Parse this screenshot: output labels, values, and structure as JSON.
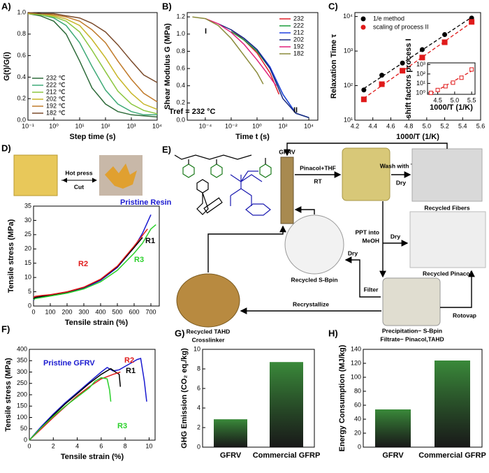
{
  "chart_data": [
    {
      "panel": "A)",
      "type": "line",
      "xlabel": "Step time (s)",
      "ylabel": "G(t)/G(i)",
      "xscale": "log",
      "xlim": [
        0.1,
        10000
      ],
      "xticks": [
        {
          "value": 0.1,
          "label": "10⁻¹"
        },
        {
          "value": 1,
          "label": "10⁰"
        },
        {
          "value": 10,
          "label": "10¹"
        },
        {
          "value": 100,
          "label": "10²"
        },
        {
          "value": 1000,
          "label": "10³"
        },
        {
          "value": 10000,
          "label": "10⁴"
        }
      ],
      "ylim": [
        0,
        1
      ],
      "yticks": [
        {
          "value": 0,
          "label": "0.0"
        },
        0.2,
        0.4,
        0.6,
        0.8,
        {
          "value": 1,
          "label": "1.0"
        }
      ],
      "legend": "lower left",
      "x": [
        0.1,
        0.3,
        1,
        3,
        10,
        30,
        100,
        300,
        1000,
        3000,
        10000
      ],
      "series": [
        {
          "name": "232 ℃",
          "color": "#2e6b3a",
          "values": [
            0.99,
            0.97,
            0.92,
            0.8,
            0.55,
            0.3,
            0.15,
            0.08,
            0.05,
            0.04,
            0.03
          ]
        },
        {
          "name": "222 ℃",
          "color": "#3faa78",
          "values": [
            0.99,
            0.98,
            0.95,
            0.88,
            0.72,
            0.5,
            0.28,
            0.15,
            0.08,
            0.05,
            0.05
          ]
        },
        {
          "name": "212 ℃",
          "color": "#8cc63f",
          "values": [
            0.99,
            0.98,
            0.96,
            0.92,
            0.82,
            0.65,
            0.45,
            0.27,
            0.15,
            0.09,
            0.06
          ]
        },
        {
          "name": "202 ℃",
          "color": "#c8b628",
          "values": [
            0.99,
            0.99,
            0.97,
            0.94,
            0.88,
            0.75,
            0.58,
            0.4,
            0.25,
            0.15,
            0.1
          ]
        },
        {
          "name": "192 ℃",
          "color": "#c07a2a",
          "values": [
            1,
            0.99,
            0.98,
            0.96,
            0.92,
            0.84,
            0.72,
            0.55,
            0.38,
            0.25,
            0.17
          ]
        },
        {
          "name": "182 ℃",
          "color": "#7a4a2a",
          "values": [
            1,
            0.99,
            0.99,
            0.97,
            0.95,
            0.9,
            0.82,
            0.7,
            0.55,
            0.42,
            0.35
          ]
        }
      ]
    },
    {
      "panel": "B)",
      "type": "line",
      "xlabel": "Time t (s)",
      "ylabel": "Shear Modulus G (MPa)",
      "xscale": "log",
      "xlim": [
        4e-06,
        50000
      ],
      "xticks": [
        {
          "value": 0.0001,
          "label": "10⁻⁴"
        },
        {
          "value": 0.01,
          "label": "10⁻²"
        },
        {
          "value": 1,
          "label": "10⁰"
        },
        {
          "value": 100,
          "label": "10²"
        },
        {
          "value": 10000,
          "label": "10⁴"
        }
      ],
      "ylim": [
        0,
        1.25
      ],
      "yticks": [
        {
          "value": 0,
          "label": "0.0"
        },
        0.2,
        0.4,
        0.6,
        0.8,
        {
          "value": 1,
          "label": "1.0"
        },
        1.2
      ],
      "legend": "upper right",
      "annotations": [
        "I",
        "II",
        "Tref = 232 °C"
      ],
      "series": [
        {
          "name": "232",
          "color": "#e0202a",
          "x": [
            0.01,
            0.1,
            1,
            10,
            50
          ],
          "values": [
            1.05,
            0.93,
            0.78,
            0.55,
            0.3
          ]
        },
        {
          "name": "222",
          "color": "#1a9a3a",
          "x": [
            0.01,
            0.1,
            1,
            10,
            100,
            1000,
            10000
          ],
          "values": [
            1.03,
            0.93,
            0.8,
            0.6,
            0.3,
            0.08,
            0.03
          ]
        },
        {
          "name": "212",
          "color": "#2040e0",
          "x": [
            0.01,
            0.1,
            1,
            10,
            100,
            1000,
            10000
          ],
          "values": [
            1.05,
            0.95,
            0.82,
            0.62,
            0.3,
            0.08,
            0.03
          ]
        },
        {
          "name": "202",
          "color": "#1a2a80",
          "x": [
            0.001,
            0.01,
            0.1,
            1,
            10,
            100,
            1000,
            10000
          ],
          "values": [
            1.12,
            1.05,
            0.95,
            0.82,
            0.6,
            0.25,
            0.08,
            0.03
          ]
        },
        {
          "name": "192",
          "color": "#e0207a",
          "x": [
            0.0001,
            0.001,
            0.01,
            0.1,
            1,
            10,
            30
          ],
          "values": [
            1.18,
            1.12,
            1.02,
            0.88,
            0.7,
            0.5,
            0.4
          ]
        },
        {
          "name": "182",
          "color": "#8a8a3a",
          "x": [
            1e-05,
            0.0001,
            0.001,
            0.01,
            0.1,
            1,
            3
          ],
          "values": [
            1.2,
            1.18,
            1.1,
            0.95,
            0.75,
            0.55,
            0.42
          ]
        }
      ]
    },
    {
      "panel": "C)",
      "type": "scatter",
      "xlabel": "1000/T (1/K)",
      "ylabel": "Relaxation Time τ",
      "yscale": "log",
      "xlim": [
        4.2,
        5.6
      ],
      "xticks": [
        4.2,
        4.4,
        4.6,
        4.8,
        {
          "value": 5,
          "label": "5.0"
        },
        5.2,
        5.4,
        5.6
      ],
      "ylim": [
        10,
        13000
      ],
      "yticks": [
        {
          "value": 10,
          "label": "10¹"
        },
        {
          "value": 100,
          "label": "10²"
        },
        {
          "value": 1000,
          "label": "10³"
        },
        {
          "value": 10000,
          "label": "10⁴"
        }
      ],
      "legend": "upper left",
      "x": [
        4.3,
        4.5,
        4.73,
        4.95,
        5.2,
        5.5
      ],
      "series": [
        {
          "name": "1/e method",
          "color": "#000000",
          "marker": "circle",
          "fit": true,
          "values": [
            75,
            200,
            450,
            1100,
            3000,
            9000
          ]
        },
        {
          "name": "scaling of process II",
          "color": "#e01a1a",
          "marker": "square",
          "fit": true,
          "values": [
            40,
            110,
            270,
            650,
            1800,
            7000
          ]
        }
      ]
    },
    {
      "type": "scatter",
      "xlabel": "1000/T (1/K)",
      "ylabel": "shift factors process I",
      "yscale": "log",
      "xlim": [
        4.2,
        5.6
      ],
      "xticks": [
        4.5,
        {
          "value": 5,
          "label": "5.0"
        },
        5.5
      ],
      "ylim": [
        0.7,
        1500
      ],
      "yticks": [
        {
          "value": 1,
          "label": "10⁰"
        },
        {
          "value": 10,
          "label": "10¹"
        },
        {
          "value": 100,
          "label": "10²"
        },
        {
          "value": 1000,
          "label": "10³"
        }
      ],
      "x": [
        4.3,
        4.5,
        4.73,
        4.95,
        5.2,
        5.5
      ],
      "series": [
        {
          "color": "#e01a1a",
          "marker": "square-open",
          "fit": true,
          "values": [
            1,
            2,
            5,
            12,
            40,
            300
          ]
        }
      ]
    },
    {
      "panel": "D)",
      "type": "line",
      "xlabel": "Tensile strain (%)",
      "ylabel": "Tensile stress (MPa)",
      "xlim": [
        0,
        750
      ],
      "xticks": [
        0,
        100,
        200,
        300,
        400,
        500,
        600,
        700
      ],
      "ylim": [
        0,
        35
      ],
      "yticks": [
        0,
        5,
        10,
        15,
        20,
        25,
        30,
        35
      ],
      "legend": "inline",
      "annotations": [
        "Hot press",
        "Cut"
      ],
      "series": [
        {
          "name": "Pristine Resin",
          "color": "#1a1ad0",
          "x": [
            0,
            10,
            50,
            100,
            200,
            300,
            400,
            500,
            600,
            650,
            700
          ],
          "values": [
            2,
            2.8,
            3.3,
            3.7,
            4.7,
            6.2,
            9,
            13.5,
            20.5,
            25.5,
            32
          ]
        },
        {
          "name": "R1",
          "color": "#000000",
          "x": [
            0,
            10,
            50,
            100,
            200,
            300,
            400,
            500,
            600,
            650
          ],
          "values": [
            2.5,
            3,
            3.4,
            3.8,
            4.9,
            6.5,
            9.3,
            13.8,
            20.5,
            24
          ]
        },
        {
          "name": "R2",
          "color": "#e01a1a",
          "x": [
            0,
            10,
            50,
            100,
            200,
            300,
            400,
            500,
            600,
            680
          ],
          "values": [
            3,
            3.4,
            3.7,
            4,
            5,
            6.6,
            9.4,
            14,
            21,
            27
          ]
        },
        {
          "name": "R3",
          "color": "#2ad02a",
          "x": [
            0,
            10,
            50,
            100,
            200,
            300,
            400,
            500,
            600,
            650,
            700,
            730
          ],
          "values": [
            2.2,
            2.6,
            3,
            3.5,
            4.5,
            6,
            8.5,
            12.5,
            18.5,
            22,
            27,
            28.5
          ]
        }
      ]
    },
    {
      "panel": "F)",
      "type": "line",
      "xlabel": "Tensile strain (%)",
      "ylabel": "Tensile stress (MPa)",
      "xlim": [
        0,
        10.5
      ],
      "xticks": [
        0,
        2,
        4,
        6,
        8,
        10
      ],
      "ylim": [
        0,
        400
      ],
      "yticks": [
        0,
        50,
        100,
        150,
        200,
        250,
        300,
        350,
        400
      ],
      "legend": "inline",
      "series": [
        {
          "name": "Pristine GFRV",
          "color": "#1a1ad0",
          "x": [
            0,
            1,
            2,
            3,
            4,
            5,
            6,
            6.5,
            7,
            7.5,
            8,
            8.5,
            9,
            9.3,
            9.6,
            9.8
          ],
          "values": [
            0,
            60,
            115,
            165,
            210,
            255,
            300,
            320,
            305,
            310,
            325,
            340,
            355,
            360,
            260,
            170
          ]
        },
        {
          "name": "R1",
          "color": "#000000",
          "x": [
            0,
            1,
            2,
            3,
            4,
            5,
            6,
            6.8,
            7.2,
            7.5,
            7.6
          ],
          "values": [
            0,
            55,
            110,
            160,
            205,
            250,
            290,
            315,
            300,
            290,
            235
          ]
        },
        {
          "name": "R2",
          "color": "#e01a1a",
          "x": [
            0,
            1,
            2,
            3,
            4,
            5,
            6,
            7,
            7.6
          ],
          "values": [
            0,
            50,
            100,
            148,
            195,
            235,
            270,
            290,
            300
          ]
        },
        {
          "name": "R3",
          "color": "#2ad02a",
          "x": [
            0,
            1,
            2,
            3,
            4,
            5,
            5.5,
            6,
            6.5,
            6.7,
            6.8
          ],
          "values": [
            0,
            55,
            105,
            150,
            190,
            230,
            260,
            275,
            270,
            220,
            170
          ]
        }
      ]
    },
    {
      "panel": "G)",
      "type": "bar",
      "ylabel": "GHG Emission (CO₂ eq./kg)",
      "color": "#3a8a3a",
      "categories": [
        "GFRV",
        "Commercial GFRP"
      ],
      "values": [
        2.85,
        8.7
      ],
      "ylim": [
        0,
        10
      ],
      "yticks": [
        0,
        2,
        4,
        6,
        8,
        10
      ]
    },
    {
      "panel": "H)",
      "type": "bar",
      "ylabel": "Energy Consumption (MJ/kg)",
      "color": "#3a8a3a",
      "categories": [
        "GFRV",
        "Commercial GFRP"
      ],
      "values": [
        54,
        124
      ],
      "ylim": [
        0,
        140
      ],
      "yticks": [
        0,
        20,
        40,
        60,
        80,
        100,
        120,
        140
      ]
    }
  ],
  "diagram": {
    "panel": "E)",
    "gfrv": "GFRV",
    "step1_top": "Pinacol+THF",
    "step1_bottom": "RT",
    "wash_top": "Wash with THF",
    "wash_bottom": "Dry",
    "fibers": "Recycled Fibers",
    "ppt_1": "PPT into",
    "ppt_2": "MeOH",
    "dry_pinacol": "Dry",
    "pinacol": "Recycled Pinacol",
    "sbpin": "Recycled S-Bpin",
    "dry_sbpin": "Dry",
    "filter": "Filter",
    "recrystallize": "Recrystallize",
    "rotovap": "Rotovap",
    "precipitation": "Precipitation− S-Bpin",
    "filtrate": "Filtrate− Pinacol,TAHD",
    "tahd_1": "Recycled TAHD",
    "tahd_2": "Crosslinker"
  }
}
